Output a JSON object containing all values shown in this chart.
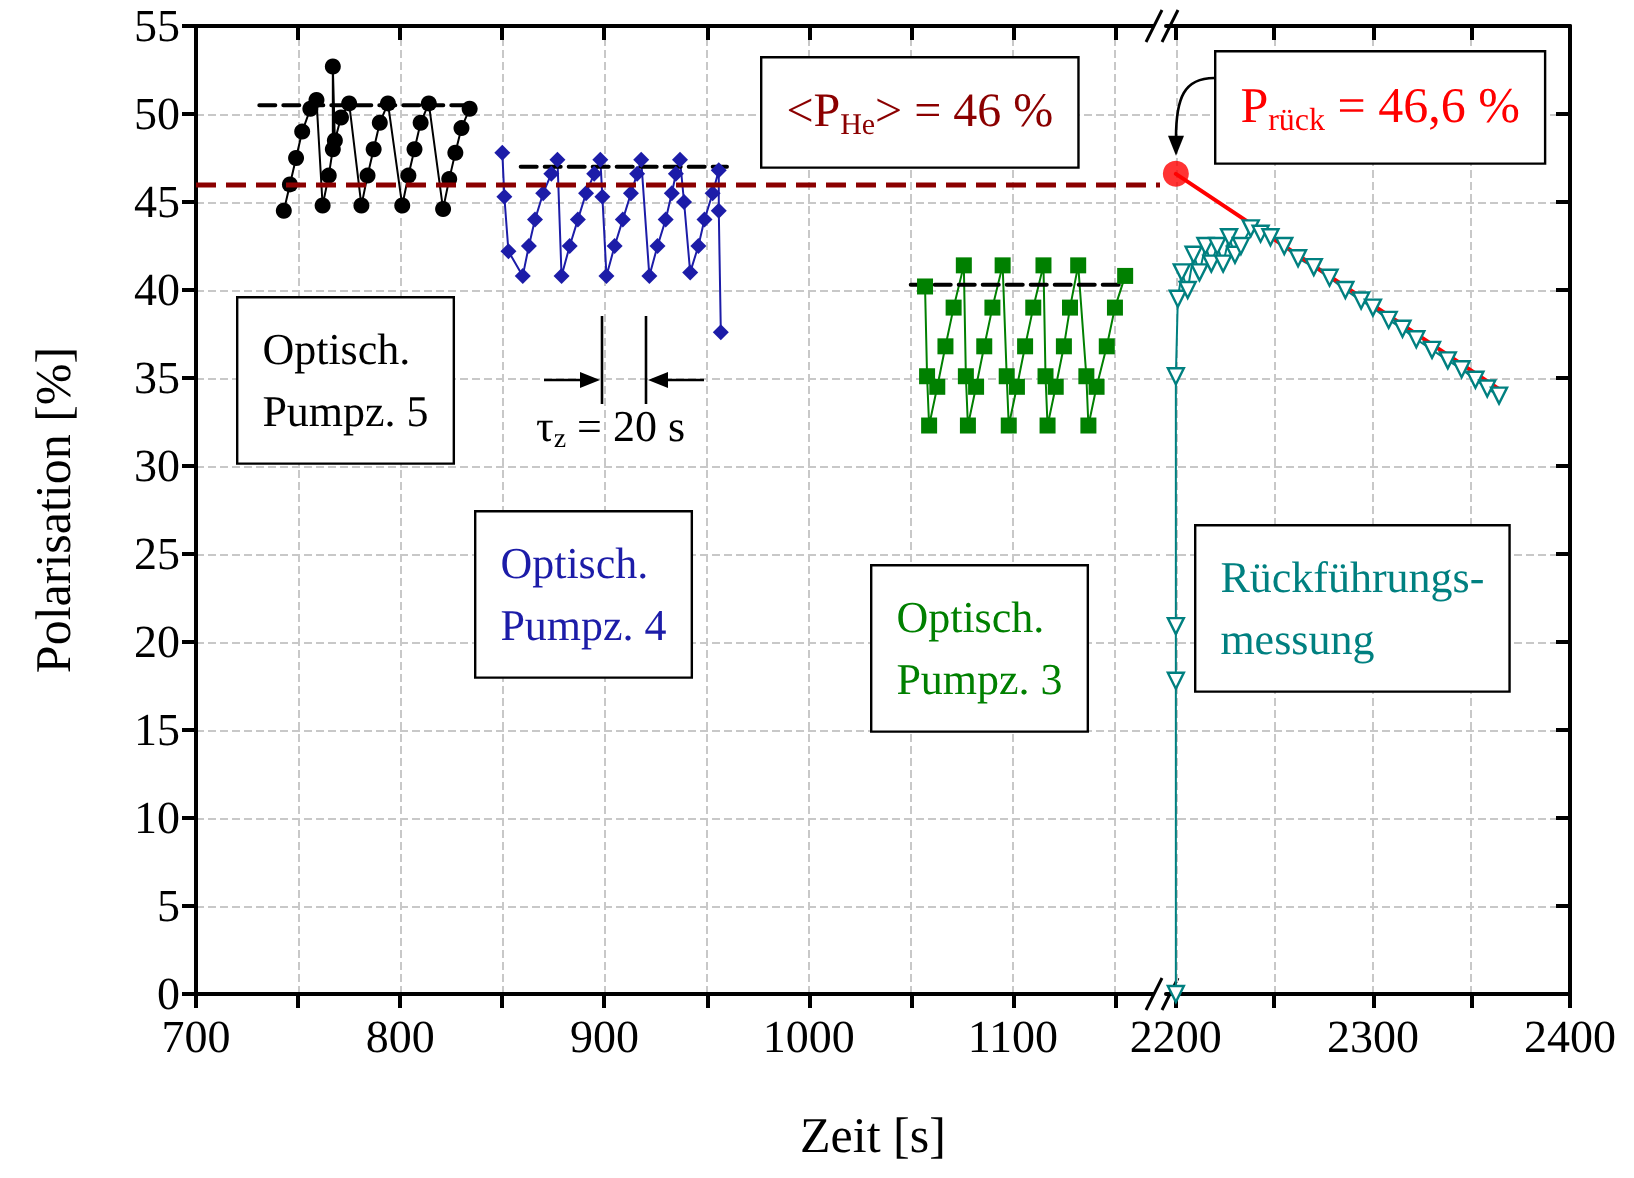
{
  "chart_data": [
    {
      "type": "line",
      "xlabel": "Zeit [s]",
      "ylabel": "Polarisation [%]",
      "annotations": [
        "τ$_{z}$ = 20 s"
      ],
      "xlim": [
        700,
        1175
      ],
      "xticks": [
        700,
        {
          "value": 750,
          "label": null
        },
        800,
        {
          "value": 850,
          "label": null
        },
        900,
        {
          "value": 950,
          "label": null
        },
        1000,
        {
          "value": 1050,
          "label": null
        },
        1100,
        {
          "value": 1150,
          "label": null
        }
      ],
      "ylim": [
        0,
        55
      ],
      "yticks": [
        0,
        5,
        10,
        15,
        20,
        25,
        30,
        35,
        40,
        45,
        50,
        55
      ],
      "grid": true,
      "ref_lines": [
        {
          "axis": "y",
          "value": 46,
          "label": "<P$_{He}$> = 46 %",
          "color": "#8b0000",
          "line_style": "dashed"
        }
      ],
      "series": [
        {
          "name": "Optisch.\nPumpz. 5",
          "color": "#000000",
          "marker": "circle",
          "x": [
            743,
            746,
            749,
            752,
            756,
            759,
            762,
            765,
            767,
            767,
            768,
            771,
            775,
            781,
            784,
            787,
            790,
            794,
            801,
            804,
            807,
            810,
            814,
            821,
            824,
            827,
            830,
            834
          ],
          "values": [
            44.5,
            46,
            47.5,
            49,
            50.3,
            50.8,
            44.8,
            46.5,
            48,
            52.7,
            48.5,
            49.8,
            50.6,
            44.8,
            46.5,
            48,
            49.5,
            50.6,
            44.8,
            46.5,
            48,
            49.5,
            50.6,
            44.6,
            46.3,
            47.8,
            49.2,
            50.3
          ]
        },
        {
          "name": "Optisch.\nPumpz. 4",
          "color": "#1c1ca8",
          "marker": "diamond",
          "x": [
            850,
            851,
            853,
            860,
            863,
            866,
            870,
            874,
            877,
            879,
            883,
            887,
            891,
            895,
            898,
            899,
            901,
            905,
            909,
            913,
            916,
            918,
            922,
            926,
            930,
            933,
            935,
            937,
            939,
            942,
            946,
            949,
            953,
            956,
            956,
            957
          ],
          "values": [
            47.8,
            45.3,
            42.2,
            40.8,
            42.5,
            44,
            45.5,
            46.6,
            47.4,
            40.8,
            42.5,
            44,
            45.5,
            46.6,
            47.4,
            45.3,
            40.8,
            42.5,
            44,
            45.5,
            46.6,
            47.4,
            40.8,
            42.5,
            44,
            45.5,
            46.6,
            47.4,
            45,
            41,
            42.5,
            44,
            45.5,
            46.8,
            44.5,
            37.6
          ]
        },
        {
          "name": "Optisch.\nPumpz. 3",
          "color": "#008000",
          "marker": "square",
          "x": [
            1057,
            1058,
            1059,
            1063,
            1067,
            1071,
            1076,
            1077,
            1078,
            1082,
            1086,
            1090,
            1095,
            1097,
            1098,
            1102,
            1106,
            1110,
            1115,
            1116,
            1117,
            1121,
            1125,
            1128,
            1132,
            1136,
            1137,
            1141,
            1146,
            1150,
            1155
          ],
          "values": [
            40.2,
            35.1,
            32.3,
            34.5,
            36.8,
            39,
            41.4,
            35.1,
            32.3,
            34.5,
            36.8,
            39,
            41.4,
            35.1,
            32.3,
            34.5,
            36.8,
            39,
            41.4,
            35.1,
            32.3,
            34.5,
            36.8,
            39,
            41.4,
            35.1,
            32.3,
            34.5,
            36.8,
            39,
            40.8
          ]
        },
        {
          "color": "#000000",
          "marker": "none",
          "line_style": "dashed",
          "x": [
            731,
            833
          ],
          "values": [
            50.5,
            50.5
          ]
        },
        {
          "color": "#000000",
          "marker": "none",
          "line_style": "dashed",
          "x": [
            859,
            960
          ],
          "values": [
            47,
            47
          ]
        },
        {
          "color": "#000000",
          "marker": "none",
          "line_style": "dashed",
          "x": [
            1050,
            1153
          ],
          "values": [
            40.3,
            40.3
          ]
        }
      ]
    },
    {
      "type": "line",
      "annotations": [
        {
          "text": "P$_{rück}$ = 46,6 %",
          "x": 2200,
          "y": 46.6
        }
      ],
      "xlim": [
        2195,
        2400
      ],
      "xticks": [
        2200,
        {
          "value": 2250,
          "label": null
        },
        2300,
        {
          "value": 2350,
          "label": null
        },
        2400
      ],
      "ylim": [
        0,
        55
      ],
      "yticks": [
        0,
        5,
        10,
        15,
        20,
        25,
        30,
        35,
        40,
        45,
        50,
        55
      ],
      "tick_labels": "x",
      "grid": true,
      "series": [
        {
          "name": "Rückführungs-\nmessung",
          "color": "#008080",
          "marker": "triangle",
          "x": [
            2200,
            2200,
            2200,
            2200,
            2201,
            2203,
            2206,
            2209,
            2212,
            2215,
            2218,
            2221,
            2224,
            2227,
            2230,
            2233,
            2238,
            2243,
            2248,
            2255,
            2262,
            2270,
            2278,
            2286,
            2294,
            2300,
            2308,
            2315,
            2322,
            2330,
            2338,
            2345,
            2352,
            2358,
            2364
          ],
          "values": [
            0,
            20.9,
            17.8,
            35.1,
            39.5,
            41,
            40,
            42,
            41,
            42.5,
            41.5,
            42.5,
            41.5,
            43,
            42,
            42.5,
            43.5,
            43.2,
            43,
            42.5,
            41.8,
            41.3,
            40.7,
            40,
            39.4,
            39,
            38.3,
            37.8,
            37.2,
            36.6,
            36,
            35.5,
            34.9,
            34.4,
            34
          ]
        },
        {
          "color": "#ff0000",
          "marker": "none",
          "x": [
            2200,
            2365
          ],
          "values": [
            46.6,
            34.3
          ]
        },
        {
          "type": "scatter",
          "color": "#ff0000",
          "marker": "circle",
          "x": [
            2200
          ],
          "values": [
            46.6
          ]
        }
      ]
    }
  ]
}
